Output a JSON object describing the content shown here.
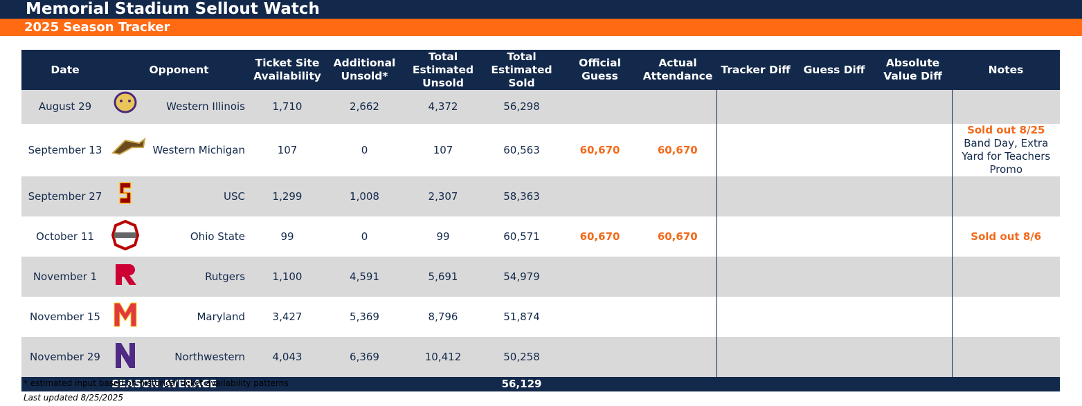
{
  "header": {
    "title": "Memorial Stadium Sellout Watch",
    "subtitle": "2025 Season Tracker"
  },
  "table": {
    "columns": [
      "Date",
      "Opponent",
      "Ticket Site Availability",
      "Additional Unsold*",
      "Total Estimated Unsold",
      "Total Estimated Sold",
      "Official Guess",
      "Actual Attendance",
      "Tracker Diff",
      "Guess Diff",
      "Absolute Value Diff",
      "Notes"
    ],
    "rows": [
      {
        "date": "August 29",
        "opponent": "Western Illinois",
        "ticket_site": "1,710",
        "additional": "2,662",
        "est_unsold": "4,372",
        "est_sold": "56,298"
      },
      {
        "date": "September 13",
        "opponent": "Western Michigan",
        "ticket_site": "107",
        "additional": "0",
        "est_unsold": "107",
        "est_sold": "60,563",
        "official_guess": "60,670",
        "actual": "60,670",
        "note": "Sold out 8/25",
        "note_detail": "Band Day, Extra Yard for Teachers Promo"
      },
      {
        "date": "September 27",
        "opponent": "USC",
        "ticket_site": "1,299",
        "additional": "1,008",
        "est_unsold": "2,307",
        "est_sold": "58,363"
      },
      {
        "date": "October 11",
        "opponent": "Ohio State",
        "ticket_site": "99",
        "additional": "0",
        "est_unsold": "99",
        "est_sold": "60,571",
        "official_guess": "60,670",
        "actual": "60,670",
        "note": "Sold out 8/6"
      },
      {
        "date": "November 1",
        "opponent": "Rutgers",
        "ticket_site": "1,100",
        "additional": "4,591",
        "est_unsold": "5,691",
        "est_sold": "54,979"
      },
      {
        "date": "November 15",
        "opponent": "Maryland",
        "ticket_site": "3,427",
        "additional": "5,369",
        "est_unsold": "8,796",
        "est_sold": "51,874"
      },
      {
        "date": "November 29",
        "opponent": "Northwestern",
        "ticket_site": "4,043",
        "additional": "6,369",
        "est_unsold": "10,412",
        "est_sold": "50,258"
      }
    ],
    "summary": {
      "label": "SEASON AVERAGE",
      "est_sold": "56,129"
    }
  },
  "footnote": "* estimated input based on historical ticket availability patterns",
  "last_updated": "Last updated 8/25/2025"
}
